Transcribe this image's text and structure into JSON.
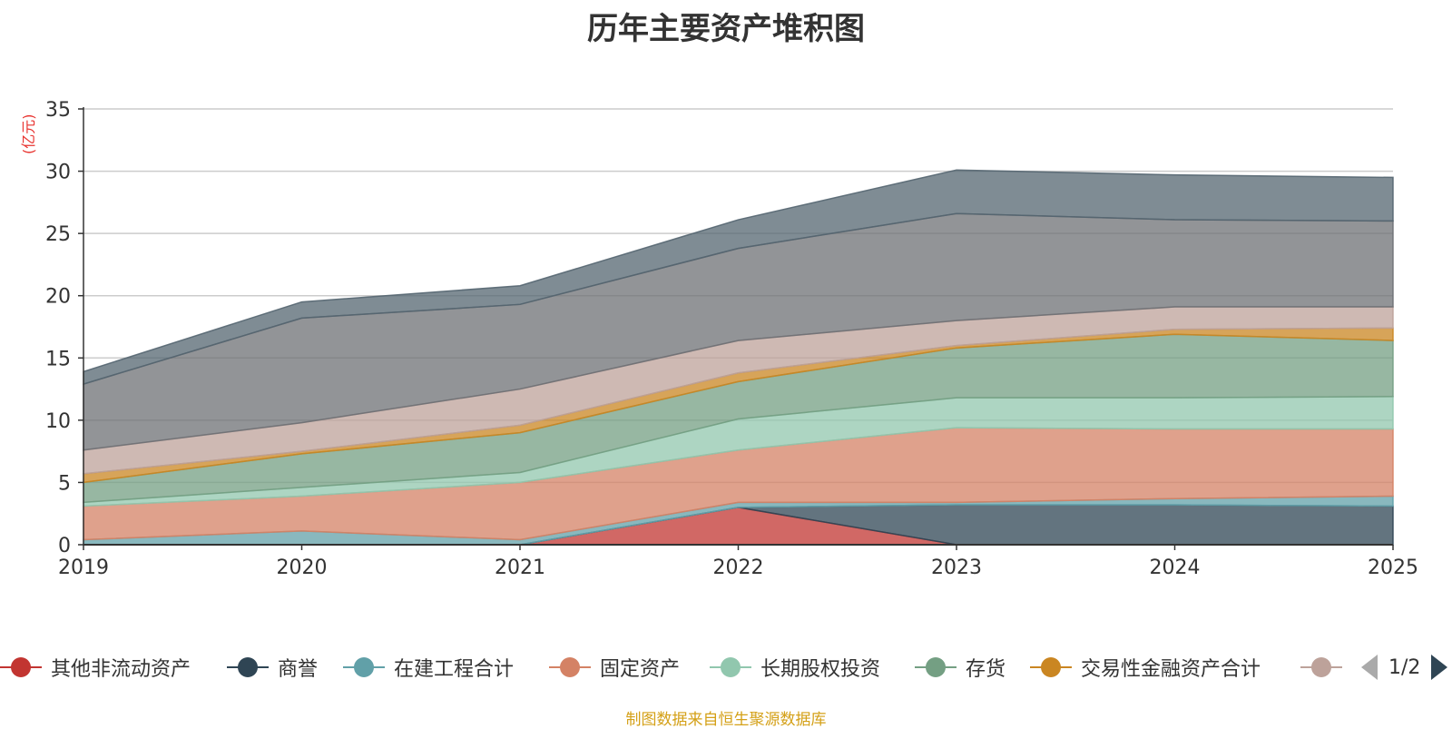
{
  "chart_data": {
    "type": "area",
    "stacked": true,
    "title": "历年主要资产堆积图",
    "ylabel": "(亿元)",
    "xlabel": "",
    "x": [
      "2019",
      "2020",
      "2021",
      "2022",
      "2023",
      "2024",
      "2025"
    ],
    "ylim": [
      0,
      35
    ],
    "yticks": [
      0,
      5,
      10,
      15,
      20,
      25,
      30,
      35
    ],
    "grid": true,
    "legend_position": "bottom",
    "series": [
      {
        "name": "其他非流动资产",
        "color": "#c23531",
        "values": [
          0,
          0,
          0,
          3.0,
          0,
          0,
          0
        ]
      },
      {
        "name": "商誉",
        "color": "#2f4554",
        "values": [
          0,
          0,
          0,
          0,
          3.2,
          3.2,
          3.1
        ]
      },
      {
        "name": "在建工程合计",
        "color": "#61a0a8",
        "values": [
          0.4,
          1.1,
          0.4,
          0.4,
          0.2,
          0.5,
          0.8
        ]
      },
      {
        "name": "固定资产",
        "color": "#d48265",
        "values": [
          2.7,
          2.8,
          4.6,
          4.2,
          6.0,
          5.6,
          5.4
        ]
      },
      {
        "name": "长期股权投资",
        "color": "#91c7ae",
        "values": [
          0.3,
          0.7,
          0.8,
          2.5,
          2.4,
          2.5,
          2.6
        ]
      },
      {
        "name": "存货",
        "color": "#749f83",
        "values": [
          1.6,
          2.7,
          3.2,
          3.0,
          4.0,
          5.1,
          4.5
        ]
      },
      {
        "name": "交易性金融资产合计",
        "color": "#ca8622",
        "values": [
          0.7,
          0.2,
          0.6,
          0.7,
          0.2,
          0.4,
          1.0
        ]
      },
      {
        "name": "",
        "color": "#bda29a",
        "values": [
          1.9,
          2.3,
          2.9,
          2.6,
          2.0,
          1.8,
          1.7
        ]
      },
      {
        "name": "",
        "color": "#6e7074",
        "values": [
          5.3,
          8.4,
          6.8,
          7.4,
          8.6,
          7.0,
          6.9
        ]
      },
      {
        "name": "",
        "color": "#546570",
        "values": [
          1.0,
          1.3,
          1.5,
          2.3,
          3.5,
          3.6,
          3.5
        ]
      }
    ]
  },
  "legend": {
    "page_text": "1/2"
  },
  "footer": {
    "source": "制图数据来自恒生聚源数据库"
  }
}
